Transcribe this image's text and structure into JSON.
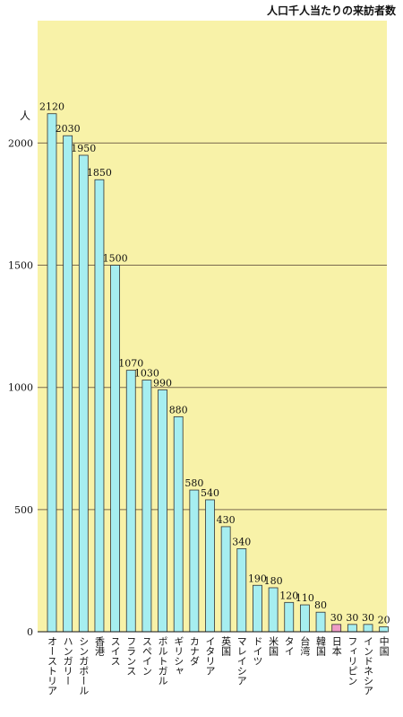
{
  "chart_data": {
    "type": "bar",
    "title": "人口千人当たりの来訪者数",
    "ylabel": "人",
    "xlabel": "",
    "ylim": [
      0,
      2120
    ],
    "yticks": [
      "0",
      "500",
      "1000",
      "1500",
      "2000"
    ],
    "grid": true,
    "categories": [
      "オーストリア",
      "ハンガリー",
      "シンガポール",
      "香港",
      "スイス",
      "フランス",
      "スペイン",
      "ポルトガル",
      "ギリシャ",
      "カナダ",
      "イタリア",
      "英国",
      "マレイシア",
      "ドイツ",
      "米国",
      "タイ",
      "台湾",
      "韓国",
      "日本",
      "フィリピン",
      "インドネシア",
      "中国"
    ],
    "values": [
      2120,
      2030,
      1950,
      1850,
      1500,
      1070,
      1030,
      990,
      880,
      580,
      540,
      430,
      340,
      190,
      180,
      120,
      110,
      80,
      30,
      30,
      30,
      20
    ],
    "value_labels": [
      "2120",
      "2030",
      "1950",
      "1850",
      "1500",
      "1070",
      "1030",
      "990",
      "880",
      "580",
      "540",
      "430",
      "340",
      "190",
      "180",
      "120",
      "110",
      "80",
      "30",
      "30",
      "30",
      "20"
    ],
    "highlight_category": "日本",
    "colors": {
      "plot_background": "#f8f2a8",
      "bar": "#a6eef0",
      "bar_highlight": "#ee9cc6",
      "bar_stroke": "#333333",
      "grid": "#7a6a4e"
    }
  }
}
